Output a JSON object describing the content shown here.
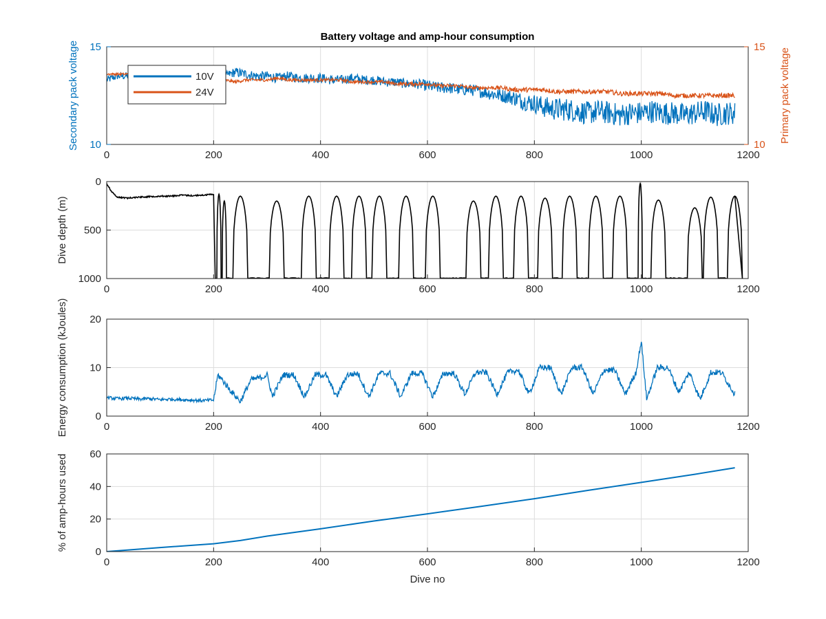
{
  "colors": {
    "series_10v": "#0072BD",
    "series_24v": "#D95319",
    "depth": "#000000",
    "axis_text": "#262626",
    "grid": "#dcdcdc"
  },
  "chart_data": [
    {
      "type": "line",
      "title": "Battery voltage and amp-hour consumption",
      "xlabel": "",
      "ylabel_left": "Secondary pack voltage",
      "ylabel_right": "Primary pack voltage",
      "xlim": [
        0,
        1200
      ],
      "ylim_left": [
        10,
        15
      ],
      "ylim_right": [
        10,
        15
      ],
      "xticks": [
        "0",
        "200",
        "400",
        "600",
        "800",
        "1000",
        "1200"
      ],
      "yticks_left": [
        "10",
        "15"
      ],
      "yticks_right": [
        "10",
        "15"
      ],
      "grid": true,
      "legend_position": "top-left",
      "series": [
        {
          "name": "10V",
          "axis": "left",
          "x": [
            0,
            20,
            40,
            60,
            80,
            100,
            120,
            140,
            160,
            180,
            200,
            220,
            240,
            260,
            280,
            300,
            320,
            340,
            360,
            380,
            400,
            420,
            440,
            460,
            480,
            500,
            520,
            540,
            560,
            580,
            600,
            620,
            640,
            660,
            680,
            700,
            720,
            740,
            760,
            780,
            800,
            820,
            840,
            860,
            880,
            900,
            920,
            940,
            960,
            980,
            1000,
            1020,
            1040,
            1060,
            1080,
            1100,
            1120,
            1140,
            1160,
            1175
          ],
          "values": [
            13.3,
            13.5,
            13.5,
            13.4,
            13.5,
            13.4,
            13.5,
            13.4,
            13.5,
            13.5,
            13.4,
            13.5,
            13.7,
            13.6,
            13.5,
            13.5,
            13.4,
            13.5,
            13.4,
            13.4,
            13.4,
            13.3,
            13.3,
            13.4,
            13.3,
            13.3,
            13.2,
            13.2,
            13.1,
            13.1,
            13.0,
            12.9,
            12.9,
            12.8,
            12.8,
            12.7,
            12.6,
            12.5,
            12.4,
            12.2,
            12.1,
            11.9,
            11.8,
            11.8,
            11.7,
            11.6,
            11.7,
            11.6,
            11.5,
            11.6,
            11.6,
            11.7,
            11.6,
            11.6,
            11.5,
            11.6,
            11.7,
            11.5,
            11.6,
            11.6
          ],
          "noise": [
            0.2,
            0.2,
            0.2,
            0.2,
            0.2,
            0.2,
            0.2,
            0.2,
            0.2,
            0.2,
            0.2,
            0.2,
            0.25,
            0.25,
            0.25,
            0.25,
            0.25,
            0.25,
            0.25,
            0.25,
            0.25,
            0.25,
            0.25,
            0.25,
            0.25,
            0.25,
            0.25,
            0.25,
            0.25,
            0.25,
            0.3,
            0.3,
            0.3,
            0.3,
            0.3,
            0.3,
            0.35,
            0.35,
            0.4,
            0.45,
            0.5,
            0.55,
            0.6,
            0.6,
            0.6,
            0.6,
            0.6,
            0.6,
            0.6,
            0.6,
            0.6,
            0.6,
            0.6,
            0.6,
            0.6,
            0.6,
            0.6,
            0.6,
            0.6,
            0.6
          ]
        },
        {
          "name": "24V",
          "axis": "right",
          "x": [
            0,
            20,
            40,
            60,
            80,
            100,
            120,
            140,
            160,
            180,
            200,
            220,
            240,
            260,
            280,
            300,
            320,
            340,
            360,
            380,
            400,
            420,
            440,
            460,
            480,
            500,
            520,
            540,
            560,
            580,
            600,
            620,
            640,
            660,
            680,
            700,
            720,
            740,
            760,
            780,
            800,
            820,
            840,
            860,
            880,
            900,
            920,
            940,
            960,
            980,
            1000,
            1020,
            1040,
            1060,
            1080,
            1100,
            1120,
            1140,
            1160,
            1175
          ],
          "values": [
            13.6,
            13.6,
            13.6,
            13.6,
            13.6,
            13.6,
            13.6,
            13.6,
            13.6,
            13.6,
            13.5,
            13.3,
            13.2,
            13.3,
            13.3,
            13.3,
            13.4,
            13.3,
            13.3,
            13.3,
            13.3,
            13.3,
            13.3,
            13.2,
            13.2,
            13.2,
            13.2,
            13.1,
            13.1,
            13.1,
            13.1,
            13.0,
            13.0,
            13.0,
            12.9,
            12.9,
            12.9,
            12.9,
            12.8,
            12.8,
            12.8,
            12.8,
            12.7,
            12.7,
            12.7,
            12.7,
            12.7,
            12.7,
            12.6,
            12.6,
            12.6,
            12.6,
            12.6,
            12.5,
            12.5,
            12.5,
            12.5,
            12.5,
            12.5,
            12.5
          ],
          "noise": [
            0.06,
            0.06,
            0.06,
            0.06,
            0.06,
            0.06,
            0.06,
            0.06,
            0.06,
            0.06,
            0.06,
            0.06,
            0.08,
            0.08,
            0.08,
            0.08,
            0.08,
            0.08,
            0.08,
            0.08,
            0.08,
            0.08,
            0.08,
            0.08,
            0.08,
            0.08,
            0.08,
            0.08,
            0.1,
            0.1,
            0.1,
            0.1,
            0.1,
            0.1,
            0.1,
            0.1,
            0.1,
            0.1,
            0.12,
            0.12,
            0.12,
            0.12,
            0.12,
            0.12,
            0.12,
            0.12,
            0.12,
            0.12,
            0.12,
            0.12,
            0.12,
            0.12,
            0.12,
            0.12,
            0.12,
            0.12,
            0.12,
            0.12,
            0.12,
            0.12
          ]
        }
      ]
    },
    {
      "type": "line",
      "title": "",
      "xlabel": "",
      "ylabel": "Dive depth (m)",
      "xlim": [
        0,
        1200
      ],
      "ylim": [
        0,
        1000
      ],
      "y_reversed": true,
      "xticks": [
        "0",
        "200",
        "400",
        "600",
        "800",
        "1000",
        "1200"
      ],
      "yticks": [
        "0",
        "500",
        "1000"
      ],
      "grid": true,
      "series": [
        {
          "name": "",
          "shallow_phase": {
            "x": [
              0,
              10,
              20,
              40,
              60,
              80,
              100,
              120,
              140,
              160,
              180,
              200
            ],
            "values": [
              20,
              110,
              160,
              170,
              160,
              155,
              150,
              150,
              140,
              145,
              140,
              130
            ]
          },
          "deep_level": 1000,
          "dive_peaks": {
            "x": [
              210,
              220,
              250,
              318,
              378,
              430,
              472,
              510,
              560,
              610,
              686,
              728,
              775,
              820,
              866,
              915,
              960,
              998,
              1032,
              1100,
              1130,
              1175
            ],
            "min_depth": [
              130,
              200,
              150,
              200,
              150,
              150,
              150,
              150,
              150,
              150,
              200,
              150,
              150,
              170,
              150,
              150,
              150,
              20,
              190,
              270,
              160,
              150
            ]
          }
        }
      ]
    },
    {
      "type": "line",
      "title": "",
      "xlabel": "",
      "ylabel": "Energy consumption (kJoules)",
      "xlim": [
        0,
        1200
      ],
      "ylim": [
        0,
        20
      ],
      "xticks": [
        "0",
        "200",
        "400",
        "600",
        "800",
        "1000",
        "1200"
      ],
      "yticks": [
        "0",
        "10",
        "20"
      ],
      "grid": true,
      "series": [
        {
          "name": "",
          "x": [
            0,
            20,
            40,
            60,
            80,
            100,
            120,
            140,
            160,
            180,
            200,
            208,
            216,
            230,
            250,
            270,
            290,
            300,
            310,
            330,
            350,
            370,
            390,
            410,
            430,
            450,
            470,
            490,
            510,
            530,
            550,
            570,
            590,
            610,
            630,
            650,
            670,
            690,
            710,
            730,
            750,
            770,
            790,
            810,
            830,
            850,
            870,
            890,
            910,
            930,
            950,
            970,
            990,
            1000,
            1010,
            1030,
            1050,
            1070,
            1090,
            1110,
            1130,
            1150,
            1175
          ],
          "values": [
            3.8,
            3.6,
            3.7,
            3.5,
            3.6,
            3.4,
            3.5,
            3.4,
            3.3,
            3.2,
            3.3,
            8.5,
            7.5,
            5.5,
            3.0,
            7.5,
            8.0,
            8.5,
            4.0,
            8.5,
            8.5,
            4.0,
            8.5,
            8.5,
            4.0,
            8.5,
            8.8,
            4.0,
            8.8,
            8.8,
            4.0,
            8.8,
            8.8,
            4.0,
            8.8,
            8.8,
            4.5,
            9.0,
            9.0,
            4.5,
            9.0,
            9.5,
            4.5,
            10.0,
            10.0,
            4.5,
            10.0,
            10.0,
            4.5,
            9.5,
            9.5,
            4.5,
            9.0,
            15.5,
            3.5,
            10.0,
            10.0,
            5.0,
            9.0,
            3.5,
            9.0,
            9.0,
            4.5
          ],
          "noise": 0.35
        }
      ]
    },
    {
      "type": "line",
      "title": "",
      "xlabel": "Dive no",
      "ylabel": "% of amp-hours used",
      "xlim": [
        0,
        1200
      ],
      "ylim": [
        0,
        60
      ],
      "xticks": [
        "0",
        "200",
        "400",
        "600",
        "800",
        "1000",
        "1200"
      ],
      "yticks": [
        "0",
        "20",
        "40",
        "60"
      ],
      "grid": true,
      "series": [
        {
          "name": "",
          "x": [
            0,
            100,
            200,
            250,
            300,
            400,
            500,
            600,
            700,
            800,
            900,
            1000,
            1100,
            1175
          ],
          "values": [
            0,
            2.5,
            4.8,
            6.8,
            9.5,
            14.0,
            18.8,
            23.2,
            27.8,
            32.5,
            37.6,
            42.5,
            47.5,
            51.5
          ]
        }
      ]
    }
  ]
}
